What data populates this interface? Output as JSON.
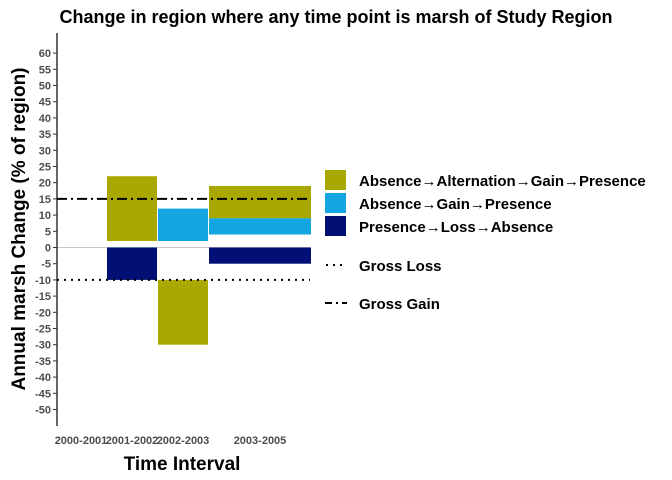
{
  "chart_data": {
    "type": "bar",
    "title": "Change in region where any time point is marsh of Study Region",
    "xlabel": "Time Interval",
    "ylabel": "Annual marsh Change (% of region)",
    "categories": [
      "2000-2001",
      "2001-2002",
      "2002-2003",
      "2003-2005"
    ],
    "yticks": [
      60,
      55,
      50,
      45,
      40,
      35,
      30,
      25,
      20,
      15,
      10,
      5,
      0,
      -5,
      -10,
      -15,
      -20,
      -25,
      -30,
      -35,
      -40,
      -45,
      -50
    ],
    "ylim": [
      -55,
      66
    ],
    "bars": [
      {
        "series": "Absence→Alternation→Gain→Presence",
        "interval": "2001-2002",
        "from": 2,
        "to": 22
      },
      {
        "series": "Absence→Alternation→Gain→Presence",
        "interval": "2002-2003",
        "from": -10,
        "to": -30
      },
      {
        "series": "Absence→Gain→Presence",
        "interval": "2002-2003",
        "from": 2,
        "to": 12
      },
      {
        "series": "Presence→Loss→Absence",
        "interval": "2001-2002",
        "from": 0,
        "to": -10
      },
      {
        "series": "Absence→Alternation→Gain→Presence",
        "interval": "2003-2005",
        "from": 9,
        "to": 19
      },
      {
        "series": "Absence→Gain→Presence",
        "interval": "2003-2005",
        "from": 4,
        "to": 9
      },
      {
        "series": "Presence→Loss→Absence",
        "interval": "2003-2005",
        "from": 0,
        "to": -5
      }
    ],
    "reference_lines": [
      {
        "name": "Gross Loss",
        "value": -10,
        "style": "dotted"
      },
      {
        "name": "Gross Gain",
        "value": 15,
        "style": "dashdot"
      }
    ],
    "legend": {
      "placement": "right",
      "entries": [
        {
          "label": "Absence→Alternation→Gain→Presence",
          "color": "#a8a800",
          "kind": "box"
        },
        {
          "label": "Absence→Gain→Presence",
          "color": "#14a5e3",
          "kind": "box"
        },
        {
          "label": "Presence→Loss→Absence",
          "color": "#020f75",
          "kind": "box"
        },
        {
          "label": "Gross Loss",
          "kind": "dotted"
        },
        {
          "label": "Gross Gain",
          "kind": "dashdot"
        }
      ]
    },
    "colors": {
      "Absence→Alternation→Gain→Presence": "#a8a800",
      "Absence→Gain→Presence": "#14a5e3",
      "Presence→Loss→Absence": "#020f75"
    },
    "grid": false
  }
}
